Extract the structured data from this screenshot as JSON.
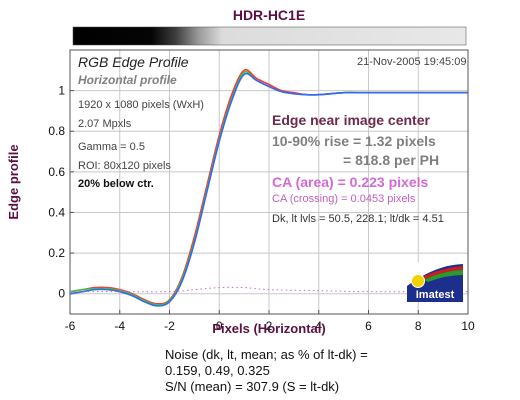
{
  "title": "HDR-HC1E",
  "chart_data": {
    "type": "line",
    "title": "HDR-HC1E",
    "xlabel": "Pixels (Horizontal)",
    "ylabel": "Edge profile",
    "xlim": [
      -6,
      10
    ],
    "ylim": [
      -0.1,
      1.2
    ],
    "x_ticks": [
      -6,
      -4,
      -2,
      0,
      2,
      4,
      6,
      8,
      10
    ],
    "y_ticks": [
      0,
      0.2,
      0.4,
      0.6,
      0.8,
      1
    ],
    "grid": true,
    "series": [
      {
        "color": "#ff3333",
        "x": [
          -6,
          -5.5,
          -5,
          -4.5,
          -4,
          -3.5,
          -3,
          -2.5,
          -2,
          -1.5,
          -1,
          -0.5,
          0,
          0.5,
          1,
          1.5,
          2,
          2.5,
          3,
          3.5,
          4,
          4.5,
          5,
          5.5,
          6,
          7,
          8,
          9,
          10
        ],
        "y": [
          0.01,
          0.02,
          0.03,
          0.03,
          0.02,
          0.0,
          -0.03,
          -0.05,
          -0.03,
          0.08,
          0.28,
          0.53,
          0.78,
          0.98,
          1.1,
          1.06,
          1.03,
          1.0,
          0.99,
          0.98,
          0.98,
          0.985,
          0.99,
          0.99,
          0.99,
          0.99,
          0.99,
          0.99,
          0.99
        ]
      },
      {
        "color": "#33cc33",
        "x": [
          -6,
          -5.5,
          -5,
          -4.5,
          -4,
          -3.5,
          -3,
          -2.5,
          -2,
          -1.5,
          -1,
          -0.5,
          0,
          0.5,
          1,
          1.5,
          2,
          2.5,
          3,
          3.5,
          4,
          4.5,
          5,
          5.5,
          6,
          7,
          8,
          9,
          10
        ],
        "y": [
          0.01,
          0.02,
          0.025,
          0.025,
          0.015,
          -0.005,
          -0.035,
          -0.055,
          -0.035,
          0.07,
          0.26,
          0.51,
          0.76,
          0.96,
          1.09,
          1.05,
          1.02,
          0.995,
          0.985,
          0.98,
          0.98,
          0.985,
          0.99,
          0.99,
          0.99,
          0.99,
          0.99,
          0.99,
          0.99
        ]
      },
      {
        "color": "#3366ff",
        "x": [
          -6,
          -5.5,
          -5,
          -4.5,
          -4,
          -3.5,
          -3,
          -2.5,
          -2,
          -1.5,
          -1,
          -0.5,
          0,
          0.5,
          1,
          1.5,
          2,
          2.5,
          3,
          3.5,
          4,
          4.5,
          5,
          5.5,
          6,
          7,
          8,
          9,
          10
        ],
        "y": [
          0.0,
          0.01,
          0.02,
          0.02,
          0.01,
          -0.01,
          -0.04,
          -0.06,
          -0.04,
          0.06,
          0.25,
          0.5,
          0.75,
          0.95,
          1.08,
          1.05,
          1.02,
          0.995,
          0.985,
          0.98,
          0.98,
          0.985,
          0.99,
          0.99,
          0.99,
          0.99,
          0.99,
          0.99,
          0.99
        ]
      },
      {
        "color": "#cc66cc",
        "style": "dotted",
        "x": [
          -6,
          -4,
          -2,
          -1,
          0,
          1,
          2,
          4,
          6,
          8,
          10
        ],
        "y": [
          0.01,
          0.01,
          0.01,
          0.02,
          0.03,
          0.03,
          0.02,
          0.015,
          0.01,
          0.01,
          0.01
        ]
      }
    ]
  },
  "labels": {
    "rgb_title": "RGB Edge Profile",
    "profile_kind": "Horizontal profile",
    "timestamp": "21-Nov-2005 19:45:09",
    "resolution": "1920 x 1080 pixels (WxH)",
    "mpxls": "2.07 Mpxls",
    "gamma": "Gamma = 0.5",
    "roi": "ROI: 80x120 pixels",
    "below_ctr": "20% below ctr.",
    "edge_location": "Edge near image center",
    "rise": "10-90% rise = 1.32 pixels",
    "per_ph": "= 818.8 per PH",
    "ca_area": "CA (area) = 0.223 pixels",
    "ca_crossing": "CA (crossing) = 0.0453 pixels",
    "levels": "Dk, lt lvls = 50.5, 228.1;  lt/dk = 4.51",
    "logo": "Imatest"
  },
  "noise": {
    "line1": "Noise (dk, lt, mean; as % of lt-dk) =",
    "line2": "0.159,  0.49,  0.325",
    "line3": "S/N (mean) = 307.9  (S = lt-dk)"
  },
  "colors": {
    "title": "#5a1040",
    "axis_label": "#5a1040",
    "grid": "#c8c8c8",
    "logo_bg": "#1d2f8c"
  }
}
